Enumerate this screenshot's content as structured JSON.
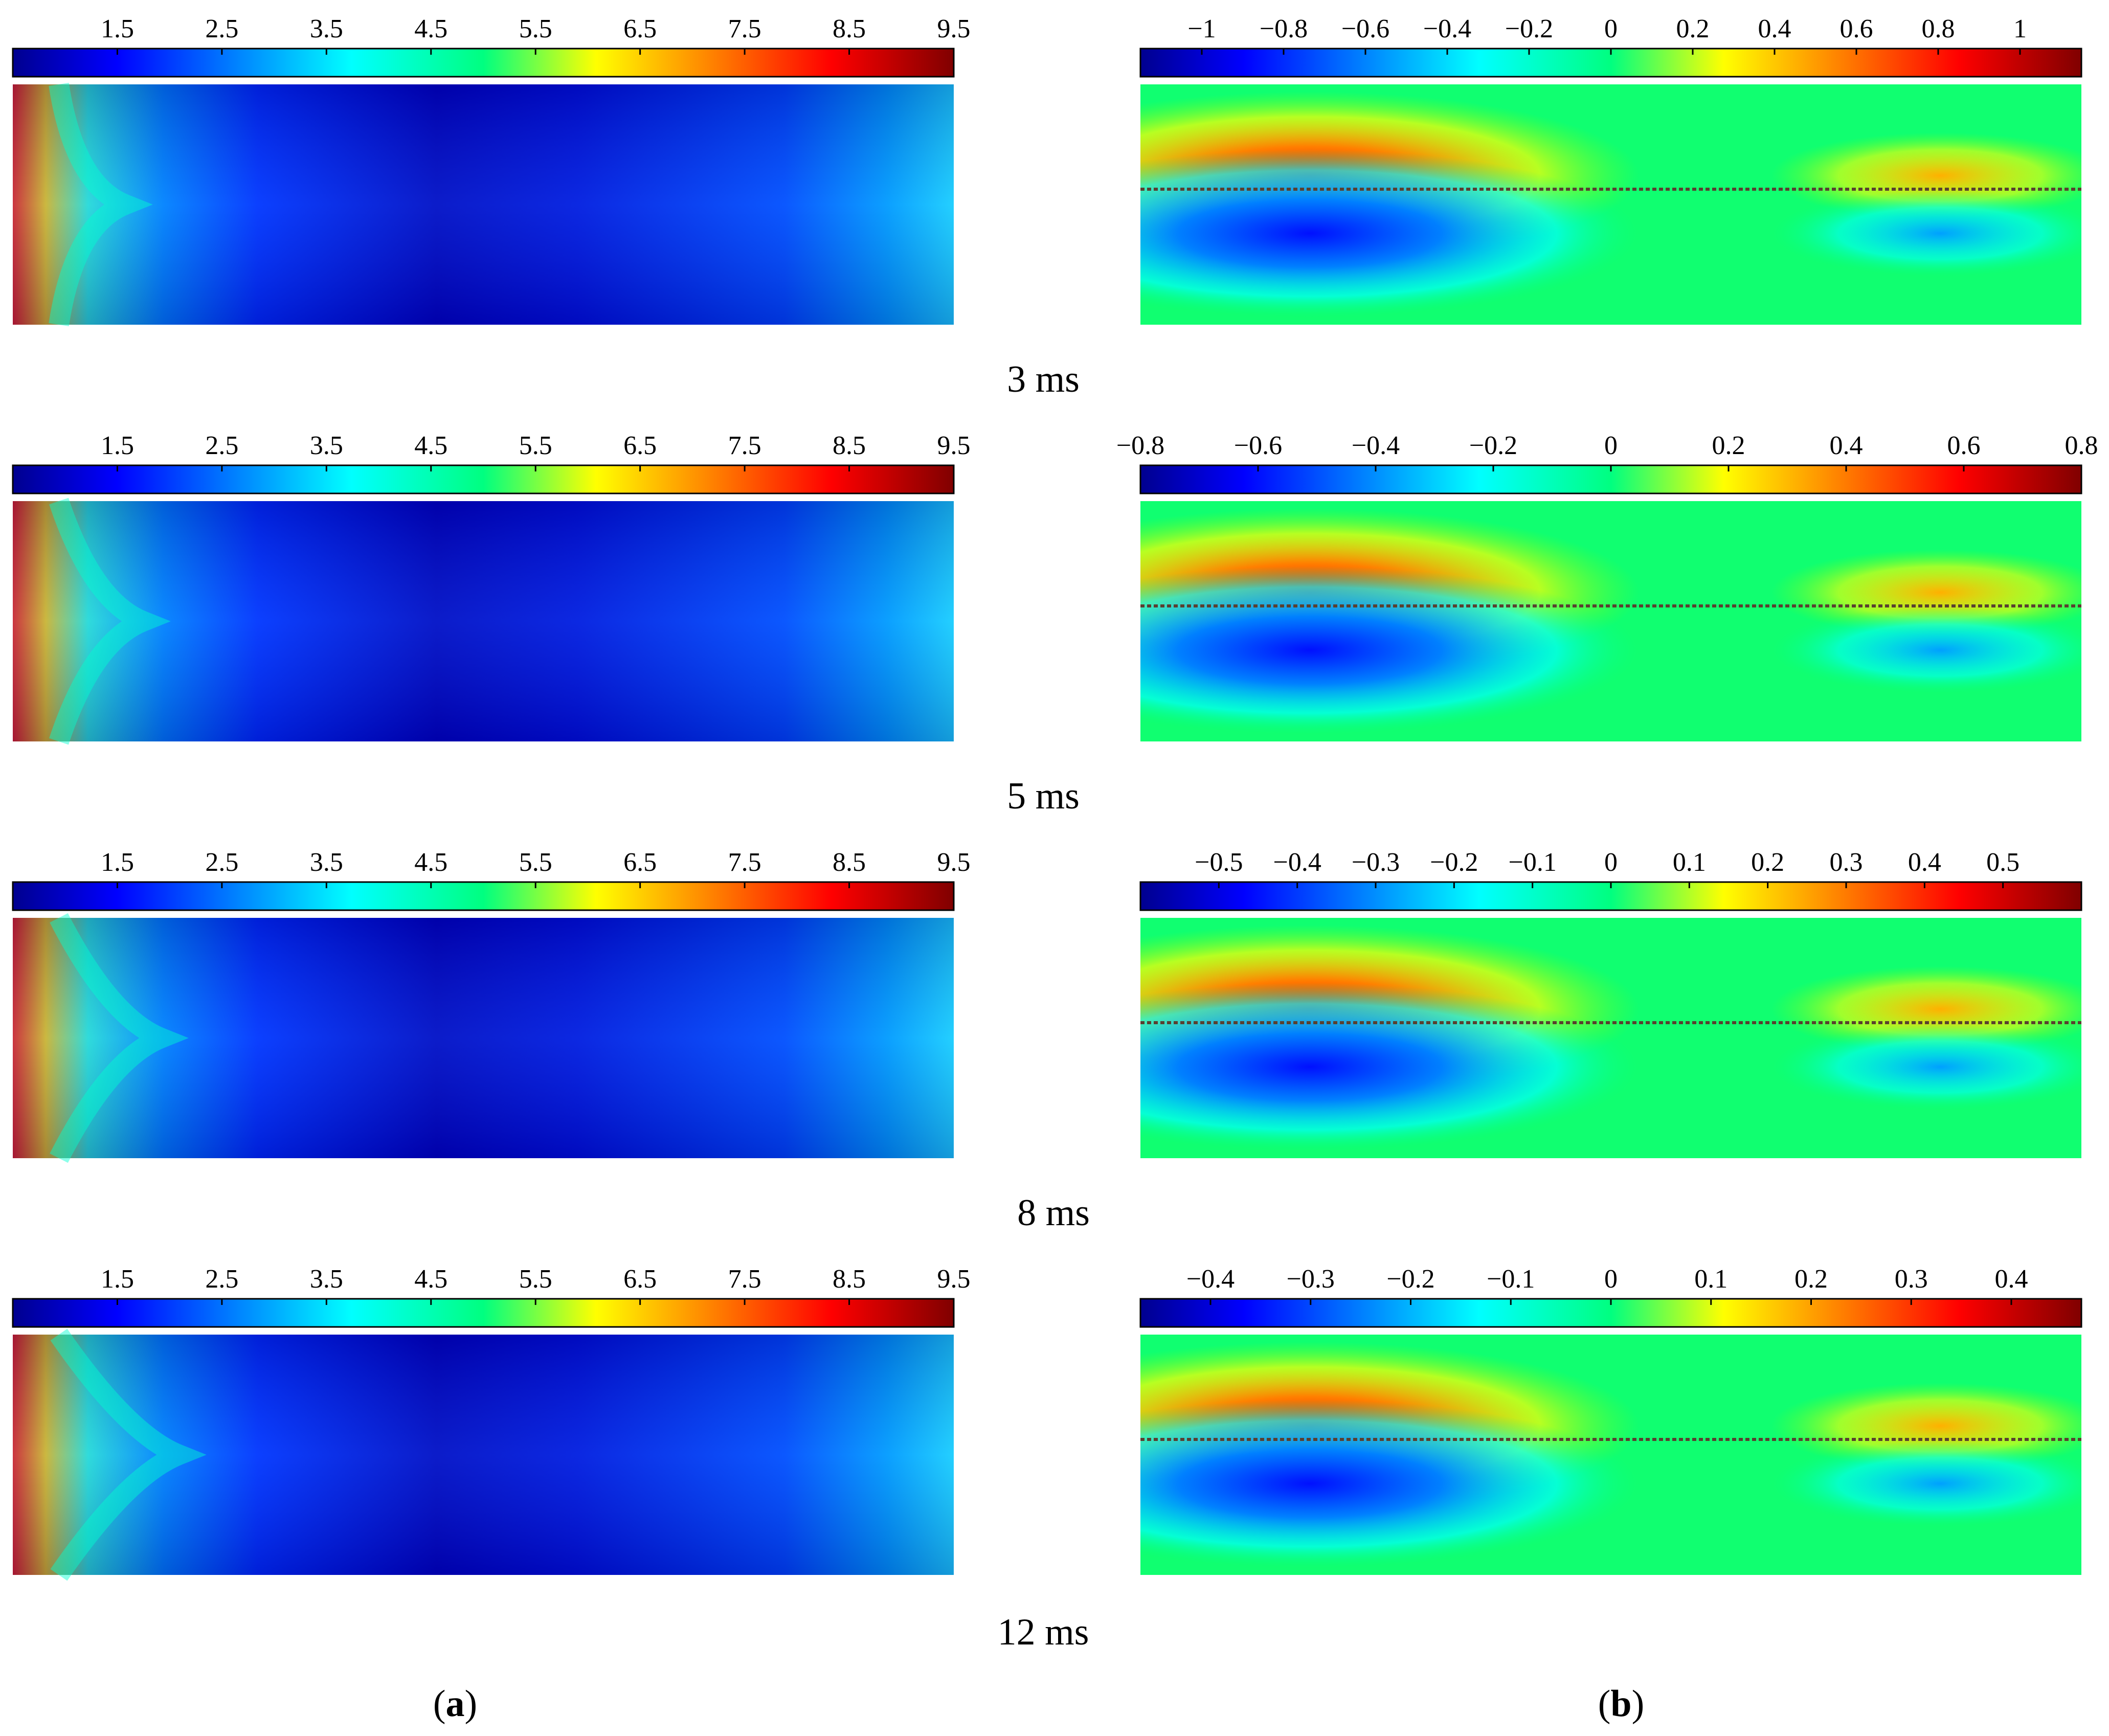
{
  "chart_data": [
    {
      "type": "heatmap",
      "panel": "a",
      "time": "3 ms",
      "colorbar_ticks": [
        "1.5",
        "2.5",
        "3.5",
        "4.5",
        "5.5",
        "6.5",
        "7.5",
        "8.5",
        "9.5"
      ],
      "colorbar_range": [
        0.5,
        9.5
      ],
      "field": "scalar"
    },
    {
      "type": "heatmap",
      "panel": "b",
      "time": "3 ms",
      "colorbar_ticks": [
        "−1",
        "−0.8",
        "−0.6",
        "−0.4",
        "−0.2",
        "0",
        "0.2",
        "0.4",
        "0.6",
        "0.8",
        "1"
      ],
      "colorbar_range": [
        -1.15,
        1.15
      ],
      "field": "antisymmetric"
    },
    {
      "type": "heatmap",
      "panel": "a",
      "time": "5 ms",
      "colorbar_ticks": [
        "1.5",
        "2.5",
        "3.5",
        "4.5",
        "5.5",
        "6.5",
        "7.5",
        "8.5",
        "9.5"
      ],
      "colorbar_range": [
        0.5,
        9.5
      ],
      "field": "scalar"
    },
    {
      "type": "heatmap",
      "panel": "b",
      "time": "5 ms",
      "colorbar_ticks": [
        "−0.8",
        "−0.6",
        "−0.4",
        "−0.2",
        "0",
        "0.2",
        "0.4",
        "0.6",
        "0.8"
      ],
      "colorbar_range": [
        -0.8,
        0.8
      ],
      "field": "antisymmetric"
    },
    {
      "type": "heatmap",
      "panel": "a",
      "time": "8 ms",
      "colorbar_ticks": [
        "1.5",
        "2.5",
        "3.5",
        "4.5",
        "5.5",
        "6.5",
        "7.5",
        "8.5",
        "9.5"
      ],
      "colorbar_range": [
        0.5,
        9.5
      ],
      "field": "scalar"
    },
    {
      "type": "heatmap",
      "panel": "b",
      "time": "8 ms",
      "colorbar_ticks": [
        "−0.5",
        "−0.4",
        "−0.3",
        "−0.2",
        "−0.1",
        "0",
        "0.1",
        "0.2",
        "0.3",
        "0.4",
        "0.5"
      ],
      "colorbar_range": [
        -0.6,
        0.6
      ],
      "field": "antisymmetric"
    },
    {
      "type": "heatmap",
      "panel": "a",
      "time": "12 ms",
      "colorbar_ticks": [
        "1.5",
        "2.5",
        "3.5",
        "4.5",
        "5.5",
        "6.5",
        "7.5",
        "8.5",
        "9.5"
      ],
      "colorbar_range": [
        0.5,
        9.5
      ],
      "field": "scalar"
    },
    {
      "type": "heatmap",
      "panel": "b",
      "time": "12 ms",
      "colorbar_ticks": [
        "−0.4",
        "−0.3",
        "−0.2",
        "−0.1",
        "0",
        "0.1",
        "0.2",
        "0.3",
        "0.4"
      ],
      "colorbar_range": [
        -0.47,
        0.47
      ],
      "field": "antisymmetric"
    }
  ],
  "time_labels": [
    "3 ms",
    "5 ms",
    "8 ms",
    "12 ms"
  ],
  "panel_labels": {
    "a": "a",
    "b": "b"
  },
  "colormap": [
    "#00008f",
    "#0000ff",
    "#0080ff",
    "#00ffff",
    "#00ff80",
    "#80ff00",
    "#ffff00",
    "#ff8000",
    "#ff0000",
    "#800000"
  ]
}
